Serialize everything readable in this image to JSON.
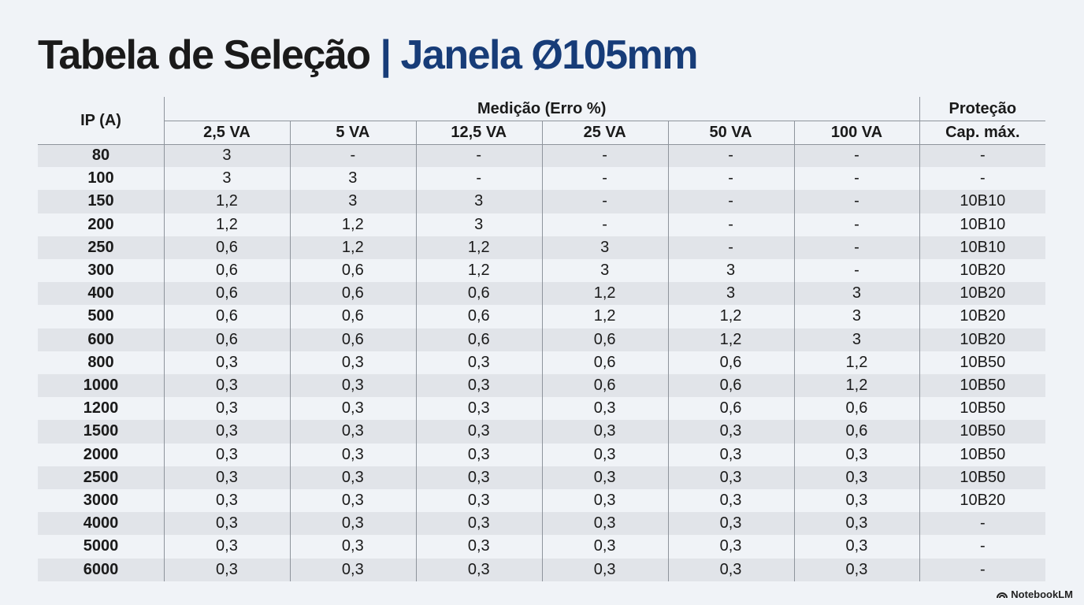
{
  "title": {
    "main": "Tabela de Seleção",
    "separator": "|",
    "accent": "Janela Ø105mm"
  },
  "table": {
    "header": {
      "ip": "IP (A)",
      "group": "Medição (Erro %)",
      "protection": "Proteção",
      "columns": [
        "2,5 VA",
        "5 VA",
        "12,5 VA",
        "25 VA",
        "50 VA",
        "100 VA",
        "Cap. máx."
      ]
    },
    "rows": [
      [
        "80",
        "3",
        "-",
        "-",
        "-",
        "-",
        "-",
        "-"
      ],
      [
        "100",
        "3",
        "3",
        "-",
        "-",
        "-",
        "-",
        "-"
      ],
      [
        "150",
        "1,2",
        "3",
        "3",
        "-",
        "-",
        "-",
        "10B10"
      ],
      [
        "200",
        "1,2",
        "1,2",
        "3",
        "-",
        "-",
        "-",
        "10B10"
      ],
      [
        "250",
        "0,6",
        "1,2",
        "1,2",
        "3",
        "-",
        "-",
        "10B10"
      ],
      [
        "300",
        "0,6",
        "0,6",
        "1,2",
        "3",
        "3",
        "-",
        "10B20"
      ],
      [
        "400",
        "0,6",
        "0,6",
        "0,6",
        "1,2",
        "3",
        "3",
        "10B20"
      ],
      [
        "500",
        "0,6",
        "0,6",
        "0,6",
        "1,2",
        "1,2",
        "3",
        "10B20"
      ],
      [
        "600",
        "0,6",
        "0,6",
        "0,6",
        "0,6",
        "1,2",
        "3",
        "10B20"
      ],
      [
        "800",
        "0,3",
        "0,3",
        "0,3",
        "0,6",
        "0,6",
        "1,2",
        "10B50"
      ],
      [
        "1000",
        "0,3",
        "0,3",
        "0,3",
        "0,6",
        "0,6",
        "1,2",
        "10B50"
      ],
      [
        "1200",
        "0,3",
        "0,3",
        "0,3",
        "0,3",
        "0,6",
        "0,6",
        "10B50"
      ],
      [
        "1500",
        "0,3",
        "0,3",
        "0,3",
        "0,3",
        "0,3",
        "0,6",
        "10B50"
      ],
      [
        "2000",
        "0,3",
        "0,3",
        "0,3",
        "0,3",
        "0,3",
        "0,3",
        "10B50"
      ],
      [
        "2500",
        "0,3",
        "0,3",
        "0,3",
        "0,3",
        "0,3",
        "0,3",
        "10B50"
      ],
      [
        "3000",
        "0,3",
        "0,3",
        "0,3",
        "0,3",
        "0,3",
        "0,3",
        "10B20"
      ],
      [
        "4000",
        "0,3",
        "0,3",
        "0,3",
        "0,3",
        "0,3",
        "0,3",
        "-"
      ],
      [
        "5000",
        "0,3",
        "0,3",
        "0,3",
        "0,3",
        "0,3",
        "0,3",
        "-"
      ],
      [
        "6000",
        "0,3",
        "0,3",
        "0,3",
        "0,3",
        "0,3",
        "0,3",
        "-"
      ]
    ]
  },
  "watermark": "NotebookLM"
}
